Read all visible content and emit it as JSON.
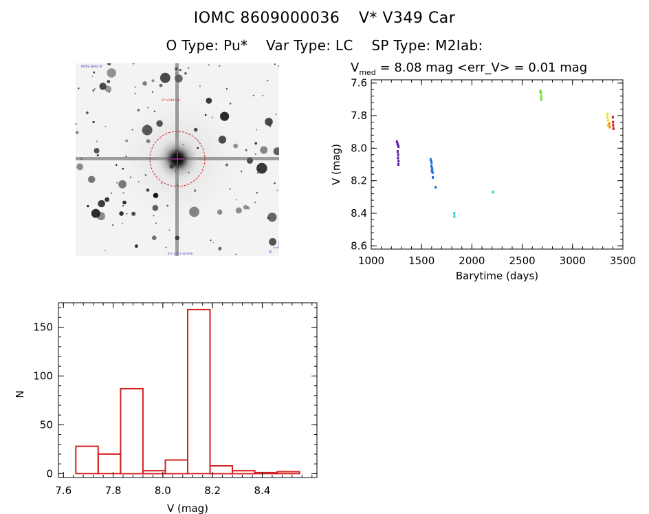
{
  "header": {
    "id_label": "IOMC 8609000036",
    "star_name": "V* V349 Car",
    "otype": "O Type: Pu*",
    "vartype": "Var Type: LC",
    "sptype": "SP Type: M2Iab:"
  },
  "image_panel": {
    "top_left_text": "POSS-DSS2 B",
    "center_label": "V* V349 Car",
    "bottom_text": "4.7 x 4.7 arcmin",
    "north_label": "N",
    "east_label": "E"
  },
  "chart_data": [
    {
      "type": "scatter",
      "title_prefix": "V",
      "title_sub": "med",
      "title_rest": " = 8.08 mag <err_V> = 0.01 mag",
      "xlabel": "Barytime (days)",
      "ylabel": "V (mag)",
      "xlim": [
        1000,
        3500
      ],
      "ylim": [
        8.62,
        7.58
      ],
      "y_inverted": true,
      "xticks": [
        1000,
        1500,
        2000,
        2500,
        3000,
        3500
      ],
      "yticks": [
        7.6,
        7.8,
        8.0,
        8.2,
        8.4,
        8.6
      ],
      "ytick_labels": [
        "7.6",
        "7.8",
        "8.0",
        "8.2",
        "8.4",
        "8.6"
      ],
      "groups": [
        {
          "color": "#5a1fa8",
          "points": [
            [
              1255,
              7.96
            ],
            [
              1260,
              7.97
            ],
            [
              1265,
              7.98
            ],
            [
              1270,
              7.99
            ],
            [
              1262,
              8.02
            ],
            [
              1268,
              8.04
            ],
            [
              1266,
              8.06
            ],
            [
              1271,
              8.08
            ],
            [
              1269,
              8.1
            ]
          ]
        },
        {
          "color": "#1f6fe0",
          "points": [
            [
              1590,
              8.07
            ],
            [
              1595,
              8.08
            ],
            [
              1600,
              8.09
            ],
            [
              1598,
              8.11
            ],
            [
              1603,
              8.12
            ],
            [
              1606,
              8.13
            ],
            [
              1601,
              8.14
            ],
            [
              1610,
              8.15
            ],
            [
              1612,
              8.18
            ],
            [
              1640,
              8.24
            ]
          ]
        },
        {
          "color": "#1ad6d6",
          "points": [
            [
              1825,
              8.4
            ],
            [
              1826,
              8.42
            ],
            [
              2210,
              8.27
            ]
          ]
        },
        {
          "color": "#66dd22",
          "points": [
            [
              2680,
              7.65
            ],
            [
              2685,
              7.66
            ],
            [
              2688,
              7.68
            ],
            [
              2690,
              7.7
            ]
          ]
        },
        {
          "color": "#e6e61a",
          "points": [
            [
              3345,
              7.79
            ],
            [
              3348,
              7.81
            ],
            [
              3352,
              7.83
            ],
            [
              3350,
              7.86
            ]
          ]
        },
        {
          "color": "#f07820",
          "points": [
            [
              3365,
              7.85
            ],
            [
              3370,
              7.87
            ]
          ]
        },
        {
          "color": "#d82020",
          "points": [
            [
              3400,
              7.81
            ],
            [
              3402,
              7.84
            ],
            [
              3404,
              7.86
            ],
            [
              3406,
              7.88
            ]
          ]
        }
      ]
    },
    {
      "type": "bar",
      "xlabel": "V (mag)",
      "ylabel": "N",
      "xlim": [
        7.58,
        8.62
      ],
      "ylim": [
        -4,
        175
      ],
      "xticks": [
        7.6,
        7.8,
        8.0,
        8.2,
        8.4
      ],
      "xtick_labels": [
        "7.6",
        "7.8",
        "8.0",
        "8.2",
        "8.4"
      ],
      "yticks": [
        0,
        50,
        100,
        150
      ],
      "bin_edges": [
        7.65,
        7.74,
        7.83,
        7.92,
        8.01,
        8.1,
        8.19,
        8.28,
        8.37,
        8.46,
        8.55
      ],
      "values": [
        28,
        20,
        87,
        3,
        14,
        168,
        8,
        3,
        1,
        2
      ],
      "bar_color": "#d42020"
    }
  ]
}
